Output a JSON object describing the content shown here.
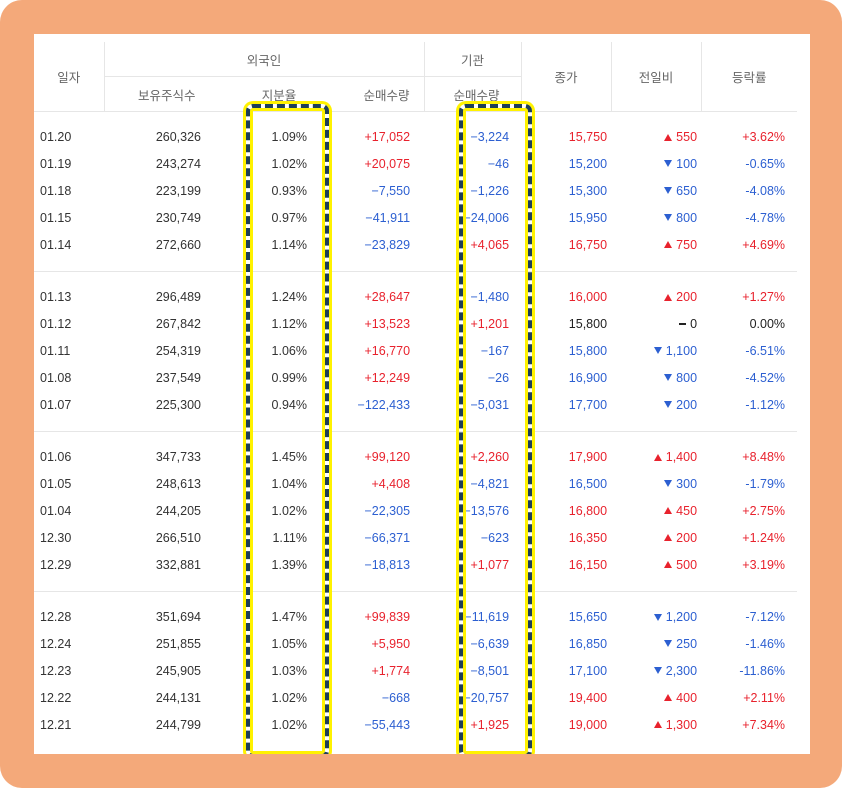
{
  "headers": {
    "date": "일자",
    "foreign_group": "외국인",
    "holdings": "보유주식수",
    "ratio": "지분율",
    "foreign_net": "순매수량",
    "institution_group": "기관",
    "institution_net": "순매수량",
    "close": "종가",
    "change": "전일비",
    "rate": "등락률"
  },
  "groups": [
    [
      {
        "date": "01.20",
        "holdings": "260,326",
        "ratio": "1.09%",
        "foreign_net": "+17,052",
        "fdir": "up",
        "inst_net": "−3,224",
        "idir": "down",
        "close": "15,750",
        "cdir": "up",
        "change": "550",
        "chdir": "up",
        "rate": "+3.62%"
      },
      {
        "date": "01.19",
        "holdings": "243,274",
        "ratio": "1.02%",
        "foreign_net": "+20,075",
        "fdir": "up",
        "inst_net": "−46",
        "idir": "down",
        "close": "15,200",
        "cdir": "down",
        "change": "100",
        "chdir": "down",
        "rate": "-0.65%"
      },
      {
        "date": "01.18",
        "holdings": "223,199",
        "ratio": "0.93%",
        "foreign_net": "−7,550",
        "fdir": "down",
        "inst_net": "−1,226",
        "idir": "down",
        "close": "15,300",
        "cdir": "down",
        "change": "650",
        "chdir": "down",
        "rate": "-4.08%"
      },
      {
        "date": "01.15",
        "holdings": "230,749",
        "ratio": "0.97%",
        "foreign_net": "−41,911",
        "fdir": "down",
        "inst_net": "−24,006",
        "idir": "down",
        "close": "15,950",
        "cdir": "down",
        "change": "800",
        "chdir": "down",
        "rate": "-4.78%"
      },
      {
        "date": "01.14",
        "holdings": "272,660",
        "ratio": "1.14%",
        "foreign_net": "−23,829",
        "fdir": "down",
        "inst_net": "+4,065",
        "idir": "up",
        "close": "16,750",
        "cdir": "up",
        "change": "750",
        "chdir": "up",
        "rate": "+4.69%"
      }
    ],
    [
      {
        "date": "01.13",
        "holdings": "296,489",
        "ratio": "1.24%",
        "foreign_net": "+28,647",
        "fdir": "up",
        "inst_net": "−1,480",
        "idir": "down",
        "close": "16,000",
        "cdir": "up",
        "change": "200",
        "chdir": "up",
        "rate": "+1.27%"
      },
      {
        "date": "01.12",
        "holdings": "267,842",
        "ratio": "1.12%",
        "foreign_net": "+13,523",
        "fdir": "up",
        "inst_net": "+1,201",
        "idir": "up",
        "close": "15,800",
        "cdir": "flat",
        "change": "0",
        "chdir": "flat",
        "rate": "0.00%"
      },
      {
        "date": "01.11",
        "holdings": "254,319",
        "ratio": "1.06%",
        "foreign_net": "+16,770",
        "fdir": "up",
        "inst_net": "−167",
        "idir": "down",
        "close": "15,800",
        "cdir": "down",
        "change": "1,100",
        "chdir": "down",
        "rate": "-6.51%"
      },
      {
        "date": "01.08",
        "holdings": "237,549",
        "ratio": "0.99%",
        "foreign_net": "+12,249",
        "fdir": "up",
        "inst_net": "−26",
        "idir": "down",
        "close": "16,900",
        "cdir": "down",
        "change": "800",
        "chdir": "down",
        "rate": "-4.52%"
      },
      {
        "date": "01.07",
        "holdings": "225,300",
        "ratio": "0.94%",
        "foreign_net": "−122,433",
        "fdir": "down",
        "inst_net": "−5,031",
        "idir": "down",
        "close": "17,700",
        "cdir": "down",
        "change": "200",
        "chdir": "down",
        "rate": "-1.12%"
      }
    ],
    [
      {
        "date": "01.06",
        "holdings": "347,733",
        "ratio": "1.45%",
        "foreign_net": "+99,120",
        "fdir": "up",
        "inst_net": "+2,260",
        "idir": "up",
        "close": "17,900",
        "cdir": "up",
        "change": "1,400",
        "chdir": "up",
        "rate": "+8.48%"
      },
      {
        "date": "01.05",
        "holdings": "248,613",
        "ratio": "1.04%",
        "foreign_net": "+4,408",
        "fdir": "up",
        "inst_net": "−4,821",
        "idir": "down",
        "close": "16,500",
        "cdir": "down",
        "change": "300",
        "chdir": "down",
        "rate": "-1.79%"
      },
      {
        "date": "01.04",
        "holdings": "244,205",
        "ratio": "1.02%",
        "foreign_net": "−22,305",
        "fdir": "down",
        "inst_net": "−13,576",
        "idir": "down",
        "close": "16,800",
        "cdir": "up",
        "change": "450",
        "chdir": "up",
        "rate": "+2.75%"
      },
      {
        "date": "12.30",
        "holdings": "266,510",
        "ratio": "1.11%",
        "foreign_net": "−66,371",
        "fdir": "down",
        "inst_net": "−623",
        "idir": "down",
        "close": "16,350",
        "cdir": "up",
        "change": "200",
        "chdir": "up",
        "rate": "+1.24%"
      },
      {
        "date": "12.29",
        "holdings": "332,881",
        "ratio": "1.39%",
        "foreign_net": "−18,813",
        "fdir": "down",
        "inst_net": "+1,077",
        "idir": "up",
        "close": "16,150",
        "cdir": "up",
        "change": "500",
        "chdir": "up",
        "rate": "+3.19%"
      }
    ],
    [
      {
        "date": "12.28",
        "holdings": "351,694",
        "ratio": "1.47%",
        "foreign_net": "+99,839",
        "fdir": "up",
        "inst_net": "−11,619",
        "idir": "down",
        "close": "15,650",
        "cdir": "down",
        "change": "1,200",
        "chdir": "down",
        "rate": "-7.12%"
      },
      {
        "date": "12.24",
        "holdings": "251,855",
        "ratio": "1.05%",
        "foreign_net": "+5,950",
        "fdir": "up",
        "inst_net": "−6,639",
        "idir": "down",
        "close": "16,850",
        "cdir": "down",
        "change": "250",
        "chdir": "down",
        "rate": "-1.46%"
      },
      {
        "date": "12.23",
        "holdings": "245,905",
        "ratio": "1.03%",
        "foreign_net": "+1,774",
        "fdir": "up",
        "inst_net": "−8,501",
        "idir": "down",
        "close": "17,100",
        "cdir": "down",
        "change": "2,300",
        "chdir": "down",
        "rate": "-11.86%"
      },
      {
        "date": "12.22",
        "holdings": "244,131",
        "ratio": "1.02%",
        "foreign_net": "−668",
        "fdir": "down",
        "inst_net": "−20,757",
        "idir": "down",
        "close": "19,400",
        "cdir": "up",
        "change": "400",
        "chdir": "up",
        "rate": "+2.11%"
      },
      {
        "date": "12.21",
        "holdings": "244,799",
        "ratio": "1.02%",
        "foreign_net": "−55,443",
        "fdir": "down",
        "inst_net": "+1,925",
        "idir": "up",
        "close": "19,000",
        "cdir": "up",
        "change": "1,300",
        "chdir": "up",
        "rate": "+7.34%"
      }
    ]
  ],
  "colors": {
    "up": "#e8222d",
    "down": "#2c5fd1",
    "flat": "#222222",
    "frame": "#f4a97a",
    "highlight_dash": "#1e3f57",
    "highlight_glow": "#fff200"
  },
  "icons": {
    "up": "triangle-up-icon",
    "down": "triangle-down-icon",
    "flat": "dash-icon"
  }
}
